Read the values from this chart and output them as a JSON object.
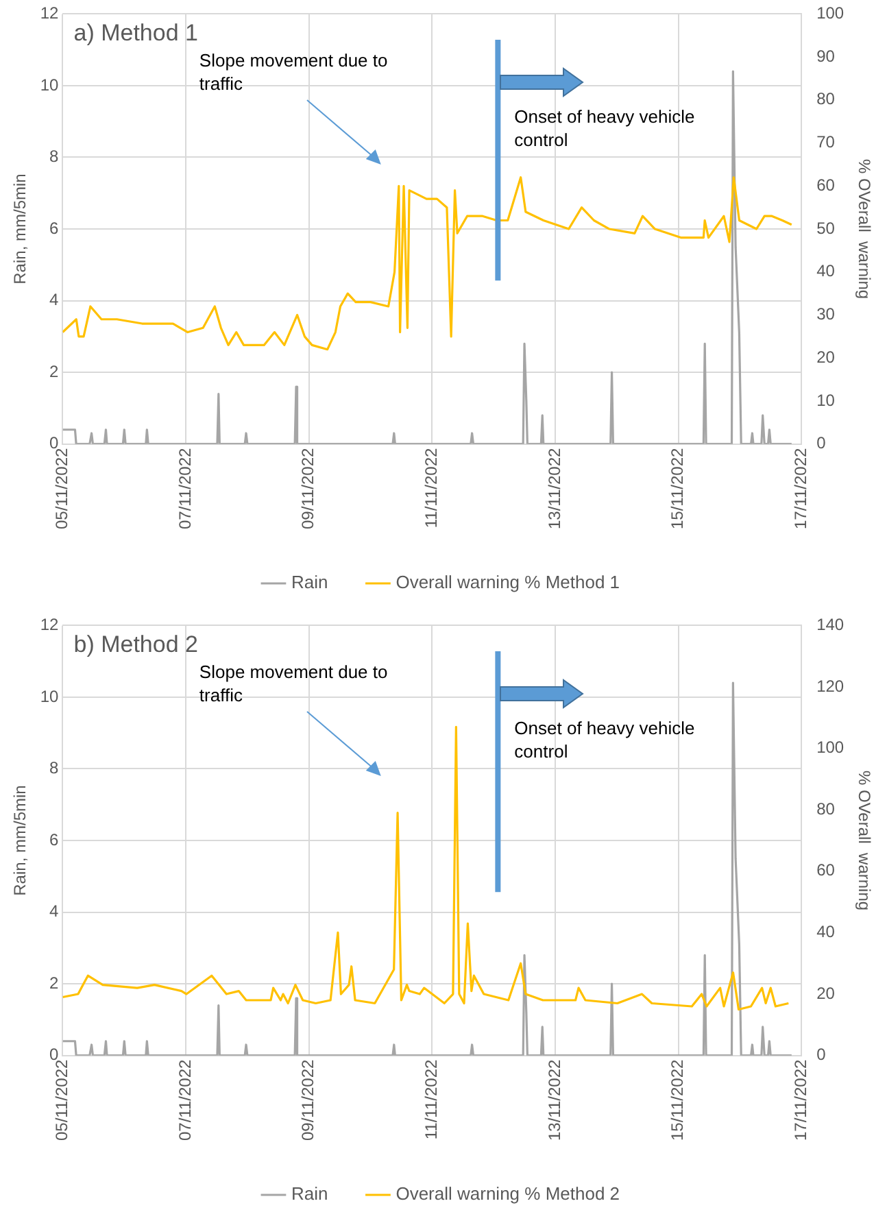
{
  "chart_data": [
    {
      "type": "line",
      "title": "a) Method 1",
      "ylabel": "Rain, mm/5min",
      "y2label": "% OVerall  warning",
      "xlim": [
        "2022-11-05",
        "2022-11-17"
      ],
      "xticks": [
        {
          "value": "2022-11-05",
          "label": "05/11/2022"
        },
        {
          "value": "2022-11-07",
          "label": "07/11/2022"
        },
        {
          "value": "2022-11-09",
          "label": "09/11/2022"
        },
        {
          "value": "2022-11-11",
          "label": "11/11/2022"
        },
        {
          "value": "2022-11-13",
          "label": "13/11/2022"
        },
        {
          "value": "2022-11-15",
          "label": "15/11/2022"
        },
        {
          "value": "2022-11-17",
          "label": "17/11/2022"
        }
      ],
      "ylim": [
        0,
        12
      ],
      "yticks": [
        0,
        2,
        4,
        6,
        8,
        10,
        12
      ],
      "y2lim": [
        0,
        100
      ],
      "y2ticks": [
        0,
        10,
        20,
        30,
        40,
        50,
        60,
        70,
        80,
        90,
        100
      ],
      "grid": true,
      "legend": "bottom",
      "marker": "none",
      "ref_lines": [
        {
          "axis": "x",
          "value": "2022-11-12T01:40",
          "label": "Onset of heavy vehicle control",
          "color": "#5b9bd5"
        }
      ],
      "annotations": [
        "Slope movement due to traffic"
      ],
      "series": [
        {
          "name": "Rain",
          "color": "#a5a5a5",
          "x": [
            "2022-11-05T00:00",
            "2022-11-05T04:48",
            "2022-11-05T05:15",
            "2022-11-05T10:30",
            "2022-11-05T11:15",
            "2022-11-05T11:45",
            "2022-11-05T16:15",
            "2022-11-05T16:50",
            "2022-11-05T17:15",
            "2022-11-05T23:30",
            "2022-11-06T00:00",
            "2022-11-06T00:30",
            "2022-11-06T08:25",
            "2022-11-06T08:50",
            "2022-11-06T09:20",
            "2022-11-07T12:15",
            "2022-11-07T12:45",
            "2022-11-07T13:10",
            "2022-11-07T23:00",
            "2022-11-07T23:30",
            "2022-11-08T00:00",
            "2022-11-08T18:30",
            "2022-11-08T19:00",
            "2022-11-08T19:25",
            "2022-11-10T08:40",
            "2022-11-10T09:10",
            "2022-11-10T09:35",
            "2022-11-11T15:05",
            "2022-11-11T15:35",
            "2022-11-11T16:05",
            "2022-11-12T11:30",
            "2022-11-12T12:00",
            "2022-11-12T12:45",
            "2022-11-12T13:10",
            "2022-11-12T18:30",
            "2022-11-12T19:00",
            "2022-11-12T19:25",
            "2022-11-13T21:35",
            "2022-11-13T22:05",
            "2022-11-13T22:35",
            "2022-11-15T09:50",
            "2022-11-15T10:20",
            "2022-11-15T10:50",
            "2022-11-15T20:50",
            "2022-11-15T21:20",
            "2022-11-15T22:20",
            "2022-11-15T23:45",
            "2022-11-16T00:30",
            "2022-11-16T04:20",
            "2022-11-16T04:50",
            "2022-11-16T05:15",
            "2022-11-16T08:25",
            "2022-11-16T08:55",
            "2022-11-16T09:35",
            "2022-11-16T11:00",
            "2022-11-16T11:30",
            "2022-11-16T12:00",
            "2022-11-16T20:10"
          ],
          "values": [
            0.4,
            0.4,
            0,
            0,
            0.3,
            0,
            0,
            0.4,
            0,
            0,
            0.4,
            0,
            0,
            0.4,
            0,
            0,
            1.4,
            0,
            0,
            0.3,
            0,
            0,
            1.6,
            0,
            0,
            0.3,
            0,
            0,
            0.3,
            0,
            0,
            2.8,
            1.2,
            0,
            0,
            0.8,
            0,
            0,
            2.0,
            0,
            0,
            2.8,
            0,
            0,
            10.4,
            5.5,
            3.1,
            0,
            0,
            0.3,
            0,
            0,
            0.8,
            0,
            0,
            0.4,
            0,
            0
          ]
        },
        {
          "name": "Overall warning % Method 1",
          "color": "#ffc000",
          "axis": "y2",
          "x": [
            "2022-11-05T00:00",
            "2022-11-05T05:17",
            "2022-11-05T06:15",
            "2022-11-05T08:10",
            "2022-11-05T10:48",
            "2022-11-05T15:07",
            "2022-11-05T21:07",
            "2022-11-06T06:58",
            "2022-11-06T18:58",
            "2022-11-07T00:43",
            "2022-11-07T06:43",
            "2022-11-07T11:17",
            "2022-11-07T13:41",
            "2022-11-07T16:34",
            "2022-11-07T19:41",
            "2022-11-07T22:34",
            "2022-11-08T06:29",
            "2022-11-08T10:34",
            "2022-11-08T14:24",
            "2022-11-08T19:26",
            "2022-11-08T22:19",
            "2022-11-09T01:12",
            "2022-11-09T07:12",
            "2022-11-09T10:19",
            "2022-11-09T12:14",
            "2022-11-09T15:07",
            "2022-11-09T18:14",
            "2022-11-10T00:00",
            "2022-11-10T06:58",
            "2022-11-10T09:22",
            "2022-11-10T11:02",
            "2022-11-10T11:31",
            "2022-11-10T12:58",
            "2022-11-10T14:24",
            "2022-11-10T15:07",
            "2022-11-10T21:50",
            "2022-11-11T01:55",
            "2022-11-11T05:46",
            "2022-11-11T07:26",
            "2022-11-11T08:53",
            "2022-11-11T09:50",
            "2022-11-11T13:41",
            "2022-11-11T19:41",
            "2022-11-12T01:12",
            "2022-11-12T05:31",
            "2022-11-12T10:34",
            "2022-11-12T12:29",
            "2022-11-12T19:26",
            "2022-11-13T05:17",
            "2022-11-13T10:19",
            "2022-11-13T15:07",
            "2022-11-13T21:07",
            "2022-11-14T06:58",
            "2022-11-14T10:05",
            "2022-11-14T14:53",
            "2022-11-15T00:58",
            "2022-11-15T09:50",
            "2022-11-15T10:19",
            "2022-11-15T11:46",
            "2022-11-15T17:46",
            "2022-11-15T19:55",
            "2022-11-15T21:36",
            "2022-11-15T23:46",
            "2022-11-16T06:29",
            "2022-11-16T09:36",
            "2022-11-16T12:29",
            "2022-11-16T16:34",
            "2022-11-16T20:10"
          ],
          "values": [
            26,
            29,
            25,
            25,
            32,
            29,
            29,
            28,
            28,
            26,
            27,
            32,
            27,
            23,
            26,
            23,
            23,
            26,
            23,
            30,
            25,
            23,
            22,
            26,
            32,
            35,
            33,
            33,
            32,
            40,
            60,
            26,
            60,
            27,
            59,
            57,
            57,
            55,
            25,
            59,
            49,
            53,
            53,
            52,
            52,
            62,
            54,
            52,
            50,
            55,
            52,
            50,
            49,
            53,
            50,
            48,
            48,
            52,
            48,
            53,
            47,
            62,
            52,
            50,
            53,
            53,
            52,
            51
          ]
        }
      ]
    },
    {
      "type": "line",
      "title": "b) Method 2",
      "ylabel": "Rain, mm/5min",
      "y2label": "% OVerall  warning",
      "xlim": [
        "2022-11-05",
        "2022-11-17"
      ],
      "xticks": [
        {
          "value": "2022-11-05",
          "label": "05/11/2022"
        },
        {
          "value": "2022-11-07",
          "label": "07/11/2022"
        },
        {
          "value": "2022-11-09",
          "label": "09/11/2022"
        },
        {
          "value": "2022-11-11",
          "label": "11/11/2022"
        },
        {
          "value": "2022-11-13",
          "label": "13/11/2022"
        },
        {
          "value": "2022-11-15",
          "label": "15/11/2022"
        },
        {
          "value": "2022-11-17",
          "label": "17/11/2022"
        }
      ],
      "ylim": [
        0,
        12
      ],
      "yticks": [
        0,
        2,
        4,
        6,
        8,
        10,
        12
      ],
      "y2lim": [
        0,
        140
      ],
      "y2ticks": [
        0,
        20,
        40,
        60,
        80,
        100,
        120,
        140
      ],
      "grid": true,
      "legend": "bottom",
      "marker": "none",
      "ref_lines": [
        {
          "axis": "x",
          "value": "2022-11-12T01:40",
          "label": "Onset of heavy vehicle control",
          "color": "#5b9bd5"
        }
      ],
      "annotations": [
        "Slope movement due to traffic"
      ],
      "series": [
        {
          "name": "Rain",
          "color": "#a5a5a5",
          "x": [
            "2022-11-05T00:00",
            "2022-11-05T04:48",
            "2022-11-05T05:15",
            "2022-11-05T10:30",
            "2022-11-05T11:15",
            "2022-11-05T11:45",
            "2022-11-05T16:15",
            "2022-11-05T16:50",
            "2022-11-05T17:15",
            "2022-11-05T23:30",
            "2022-11-06T00:00",
            "2022-11-06T00:30",
            "2022-11-06T08:25",
            "2022-11-06T08:50",
            "2022-11-06T09:20",
            "2022-11-07T12:15",
            "2022-11-07T12:45",
            "2022-11-07T13:10",
            "2022-11-07T23:00",
            "2022-11-07T23:30",
            "2022-11-08T00:00",
            "2022-11-08T18:30",
            "2022-11-08T19:00",
            "2022-11-08T19:25",
            "2022-11-10T08:40",
            "2022-11-10T09:10",
            "2022-11-10T09:35",
            "2022-11-11T15:05",
            "2022-11-11T15:35",
            "2022-11-11T16:05",
            "2022-11-12T11:30",
            "2022-11-12T12:00",
            "2022-11-12T12:45",
            "2022-11-12T13:10",
            "2022-11-12T18:30",
            "2022-11-12T19:00",
            "2022-11-12T19:25",
            "2022-11-13T21:35",
            "2022-11-13T22:05",
            "2022-11-13T22:35",
            "2022-11-15T09:50",
            "2022-11-15T10:20",
            "2022-11-15T10:50",
            "2022-11-15T20:50",
            "2022-11-15T21:20",
            "2022-11-15T22:20",
            "2022-11-15T23:45",
            "2022-11-16T00:30",
            "2022-11-16T04:20",
            "2022-11-16T04:50",
            "2022-11-16T05:15",
            "2022-11-16T08:25",
            "2022-11-16T08:55",
            "2022-11-16T09:35",
            "2022-11-16T11:00",
            "2022-11-16T11:30",
            "2022-11-16T12:00",
            "2022-11-16T20:10"
          ],
          "values": [
            0.4,
            0.4,
            0,
            0,
            0.3,
            0,
            0,
            0.4,
            0,
            0,
            0.4,
            0,
            0,
            0.4,
            0,
            0,
            1.4,
            0,
            0,
            0.3,
            0,
            0,
            1.6,
            0,
            0,
            0.3,
            0,
            0,
            0.3,
            0,
            0,
            2.8,
            1.2,
            0,
            0,
            0.8,
            0,
            0,
            2.0,
            0,
            0,
            2.8,
            0,
            0,
            10.4,
            5.5,
            3.1,
            0,
            0,
            0.3,
            0,
            0,
            0.8,
            0,
            0,
            0.4,
            0,
            0
          ]
        },
        {
          "name": "Overall warning % Method 2",
          "color": "#ffc000",
          "axis": "y2",
          "x": [
            "2022-11-05T00:00",
            "2022-11-05T06:00",
            "2022-11-05T07:55",
            "2022-11-05T09:50",
            "2022-11-05T15:36",
            "2022-11-06T05:02",
            "2022-11-06T11:46",
            "2022-11-06T22:19",
            "2022-11-07T00:14",
            "2022-11-07T10:05",
            "2022-11-07T15:50",
            "2022-11-07T20:38",
            "2022-11-07T23:31",
            "2022-11-08T09:07",
            "2022-11-08T10:05",
            "2022-11-08T12:58",
            "2022-11-08T13:55",
            "2022-11-08T15:50",
            "2022-11-08T18:43",
            "2022-11-08T21:36",
            "2022-11-09T02:38",
            "2022-11-09T08:24",
            "2022-11-09T11:17",
            "2022-11-09T12:29",
            "2022-11-09T15:36",
            "2022-11-09T16:34",
            "2022-11-09T18:00",
            "2022-11-10T01:41",
            "2022-11-10T09:07",
            "2022-11-10T10:34",
            "2022-11-10T12:00",
            "2022-11-10T14:10",
            "2022-11-10T15:07",
            "2022-11-10T19:12",
            "2022-11-10T20:53",
            "2022-11-11T04:48",
            "2022-11-11T08:10",
            "2022-11-11T09:22",
            "2022-11-11T10:34",
            "2022-11-11T12:29",
            "2022-11-11T13:55",
            "2022-11-11T15:22",
            "2022-11-11T16:19",
            "2022-11-11T20:10",
            "2022-11-12T05:46",
            "2022-11-12T10:34",
            "2022-11-12T12:29",
            "2022-11-12T19:12",
            "2022-11-13T07:55",
            "2022-11-13T09:07",
            "2022-11-13T11:46",
            "2022-11-14T00:14",
            "2022-11-14T09:50",
            "2022-11-14T13:41",
            "2022-11-15T05:17",
            "2022-11-15T09:07",
            "2022-11-15T11:02",
            "2022-11-15T16:19",
            "2022-11-15T17:46",
            "2022-11-15T21:22",
            "2022-11-15T23:31",
            "2022-11-16T04:19",
            "2022-11-16T08:38",
            "2022-11-16T10:05",
            "2022-11-16T12:00",
            "2022-11-16T13:55",
            "2022-11-16T18:58"
          ],
          "values": [
            19,
            20,
            23,
            26,
            23,
            22,
            23,
            21,
            20,
            26,
            20,
            21,
            18,
            18,
            22,
            18,
            20,
            17,
            23,
            18,
            17,
            18,
            40,
            20,
            23,
            29,
            18,
            17,
            28,
            79,
            18,
            23,
            21,
            20,
            22,
            17,
            20,
            107,
            20,
            17,
            43,
            21,
            26,
            20,
            18,
            30,
            20,
            18,
            18,
            22,
            18,
            17,
            20,
            17,
            16,
            20,
            16,
            22,
            16,
            27,
            15,
            16,
            22,
            17,
            22,
            16,
            17
          ]
        }
      ]
    }
  ]
}
